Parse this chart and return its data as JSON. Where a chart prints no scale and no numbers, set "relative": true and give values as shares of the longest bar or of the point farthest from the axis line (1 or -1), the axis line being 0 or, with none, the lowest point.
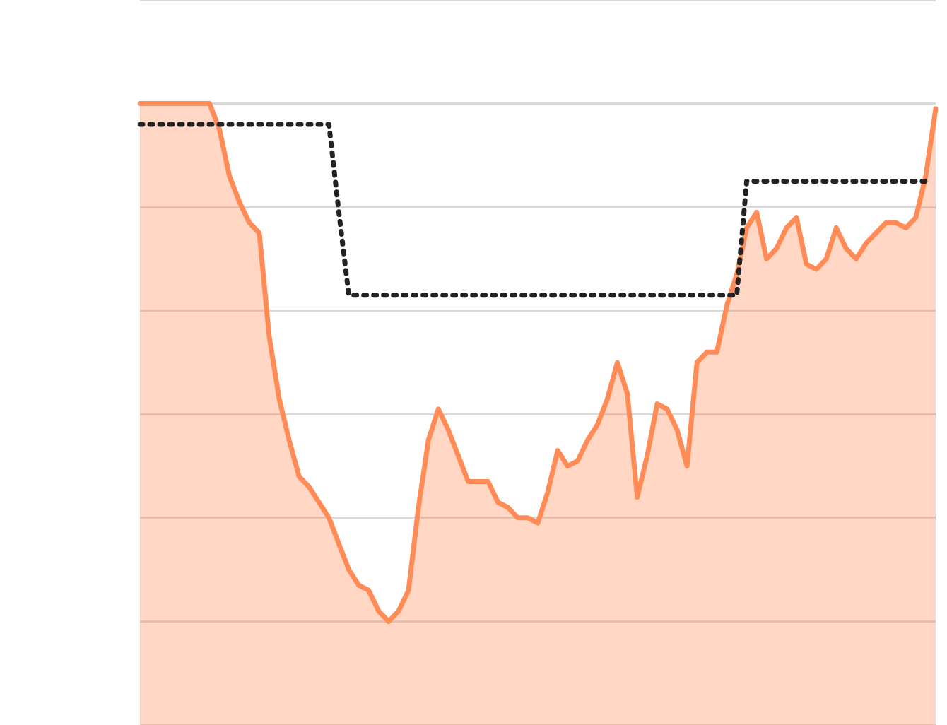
{
  "chart_data": {
    "type": "area",
    "relative": true,
    "grid": "y",
    "categories": [
      null,
      null,
      null,
      null,
      null,
      null,
      null,
      null,
      null,
      null,
      null,
      null,
      null,
      null,
      null,
      null,
      null,
      null,
      null,
      null,
      null,
      null,
      null,
      null,
      null,
      null,
      null,
      null,
      null,
      null,
      null,
      null,
      null,
      null,
      null,
      null,
      null,
      null,
      null,
      null,
      null,
      null,
      null,
      null,
      null,
      null,
      null,
      null,
      null,
      null,
      null,
      null,
      null,
      null,
      null,
      null,
      null,
      null,
      null,
      null,
      null,
      null,
      null,
      null,
      null,
      null,
      null,
      null,
      null,
      null,
      null,
      null,
      null,
      null,
      null,
      null,
      null,
      null,
      null,
      null,
      null
    ],
    "series": [
      {
        "color": "#ff8c57",
        "values": [
          1.0,
          1.0,
          1.0,
          1.0,
          1.0,
          1.0,
          1.0,
          1.0,
          0.95,
          0.86,
          0.81,
          0.77,
          0.75,
          0.55,
          0.43,
          0.35,
          0.28,
          0.26,
          0.23,
          0.2,
          0.15,
          0.1,
          0.07,
          0.06,
          0.02,
          0.0,
          0.02,
          0.06,
          0.22,
          0.35,
          0.41,
          0.37,
          0.32,
          0.27,
          0.27,
          0.27,
          0.23,
          0.22,
          0.2,
          0.2,
          0.19,
          0.25,
          0.33,
          0.3,
          0.31,
          0.35,
          0.38,
          0.43,
          0.5,
          0.44,
          0.24,
          0.32,
          0.42,
          0.41,
          0.37,
          0.3,
          0.5,
          0.52,
          0.52,
          0.61,
          0.67,
          0.76,
          0.79,
          0.7,
          0.72,
          0.76,
          0.78,
          0.69,
          0.68,
          0.7,
          0.76,
          0.72,
          0.7,
          0.73,
          0.75,
          0.77,
          0.77,
          0.76,
          0.78,
          0.86,
          0.99
        ]
      },
      {
        "type": "line",
        "line_style": "dotted",
        "color": "#222222",
        "values": [
          0.96,
          0.96,
          0.96,
          0.96,
          0.96,
          0.96,
          0.96,
          0.96,
          0.96,
          0.96,
          0.96,
          0.96,
          0.96,
          0.96,
          0.96,
          0.96,
          0.96,
          0.96,
          0.96,
          0.96,
          0.79,
          0.63,
          0.63,
          0.63,
          0.63,
          0.63,
          0.63,
          0.63,
          0.63,
          0.63,
          0.63,
          0.63,
          0.63,
          0.63,
          0.63,
          0.63,
          0.63,
          0.63,
          0.63,
          0.63,
          0.63,
          0.63,
          0.63,
          0.63,
          0.63,
          0.63,
          0.63,
          0.63,
          0.63,
          0.63,
          0.63,
          0.63,
          0.63,
          0.63,
          0.63,
          0.63,
          0.63,
          0.63,
          0.63,
          0.63,
          0.63,
          0.85,
          0.85,
          0.85,
          0.85,
          0.85,
          0.85,
          0.85,
          0.85,
          0.85,
          0.85,
          0.85,
          0.85,
          0.85,
          0.85,
          0.85,
          0.85,
          0.85,
          0.85,
          0.85,
          null
        ]
      }
    ]
  }
}
